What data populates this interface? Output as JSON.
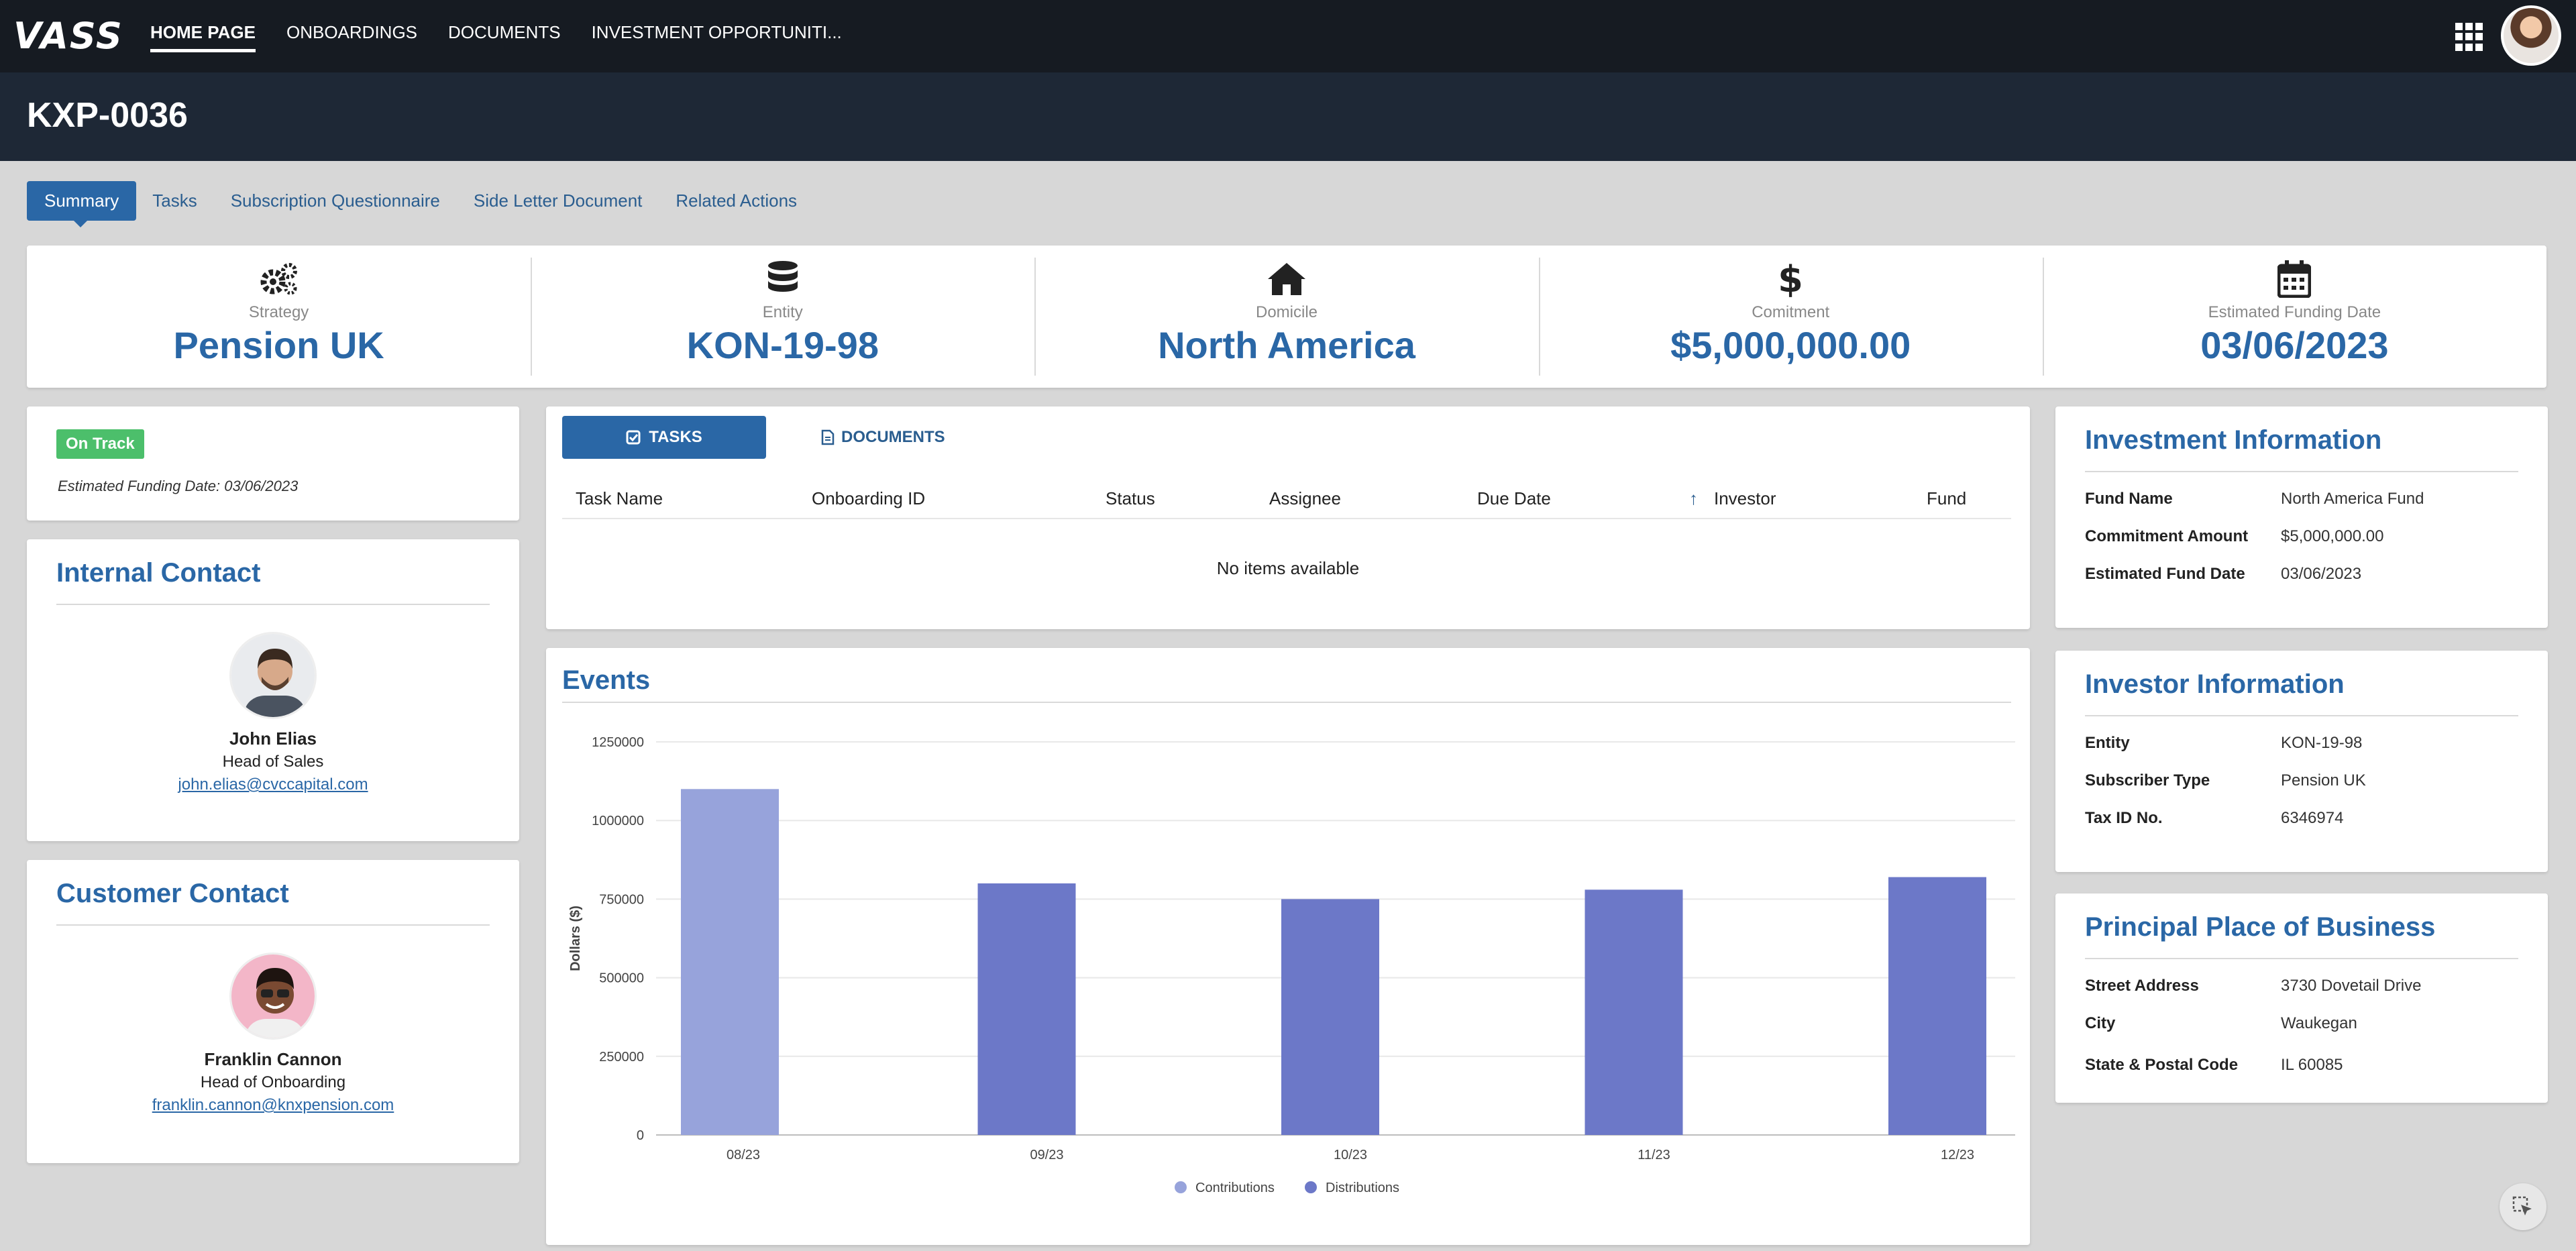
{
  "app": {
    "logo": "VASS"
  },
  "nav": {
    "items": [
      "HOME PAGE",
      "ONBOARDINGS",
      "DOCUMENTS",
      "INVESTMENT OPPORTUNITI..."
    ]
  },
  "page": {
    "title": "KXP-0036"
  },
  "tabs": [
    "Summary",
    "Tasks",
    "Subscription Questionnaire",
    "Side Letter Document",
    "Related Actions"
  ],
  "summary": [
    {
      "label": "Strategy",
      "value": "Pension UK",
      "icon": "gears-icon"
    },
    {
      "label": "Entity",
      "value": "KON-19-98",
      "icon": "database-icon"
    },
    {
      "label": "Domicile",
      "value": "North America",
      "icon": "home-icon"
    },
    {
      "label": "Comitment",
      "value": "$5,000,000.00",
      "icon": "dollar-icon"
    },
    {
      "label": "Estimated Funding Date",
      "value": "03/06/2023",
      "icon": "calendar-icon"
    }
  ],
  "status": {
    "badge": "On Track",
    "date_text": "Estimated Funding Date: 03/06/2023"
  },
  "internal_contact": {
    "title": "Internal Contact",
    "name": "John Elias",
    "role": "Head of Sales",
    "email": "john.elias@cvccapital.com"
  },
  "customer_contact": {
    "title": "Customer Contact",
    "name": "Franklin Cannon",
    "role": "Head of Onboarding",
    "email": "franklin.cannon@knxpension.com"
  },
  "tasks_panel": {
    "tab_tasks": "TASKS",
    "tab_documents": "DOCUMENTS",
    "columns": [
      "Task Name",
      "Onboarding ID",
      "Status",
      "Assignee",
      "Due Date",
      "Investor",
      "Fund"
    ],
    "empty_text": "No items available"
  },
  "events": {
    "title": "Events"
  },
  "chart_data": {
    "type": "bar",
    "categories": [
      "08/23",
      "09/23",
      "10/23",
      "11/23",
      "12/23"
    ],
    "series": [
      {
        "name": "Contributions",
        "color": "#97a3db",
        "values": [
          1100000,
          0,
          0,
          0,
          0
        ]
      },
      {
        "name": "Distributions",
        "color": "#6c78c8",
        "values": [
          0,
          800000,
          750000,
          780000,
          820000
        ]
      }
    ],
    "ylabel": "Dollars ($)",
    "yticks": [
      "0",
      "250000",
      "500000",
      "750000",
      "1000000",
      "1250000"
    ],
    "ylim": [
      0,
      1250000
    ],
    "legend": "bottom",
    "grid": true
  },
  "investment_info": {
    "title": "Investment Information",
    "rows": [
      {
        "k": "Fund Name",
        "v": "North America Fund"
      },
      {
        "k": "Commitment Amount",
        "v": "$5,000,000.00"
      },
      {
        "k": "Estimated Fund Date",
        "v": "03/06/2023"
      }
    ]
  },
  "investor_info": {
    "title": "Investor Information",
    "rows": [
      {
        "k": "Entity",
        "v": "KON-19-98"
      },
      {
        "k": "Subscriber Type",
        "v": "Pension UK"
      },
      {
        "k": "Tax ID No.",
        "v": "6346974"
      }
    ]
  },
  "principal_place": {
    "title": "Principal Place of Business",
    "rows": [
      {
        "k": "Street Address",
        "v": "3730 Dovetail Drive"
      },
      {
        "k": "City",
        "v": "Waukegan"
      },
      {
        "k": "State & Postal Code",
        "v": "IL 60085"
      }
    ]
  }
}
